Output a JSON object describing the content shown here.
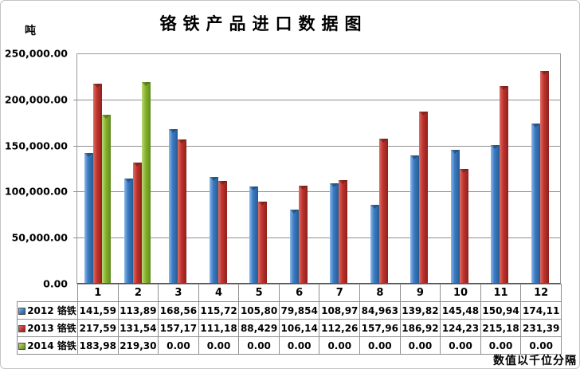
{
  "title": "铬铁产品进口数据图",
  "y_unit": "吨",
  "footer_note": "数值以千位分隔",
  "y_ticks": [
    "250,000.00",
    "200,000.00",
    "150,000.00",
    "100,000.00",
    "50,000.00",
    "0.00"
  ],
  "months": [
    "1",
    "2",
    "3",
    "4",
    "5",
    "6",
    "7",
    "8",
    "9",
    "10",
    "11",
    "12"
  ],
  "table_rows": [
    {
      "label": "2012 铬铁",
      "cells": [
        "141,59",
        "113,89",
        "168,56",
        "115,72",
        "105,80",
        "79,854",
        "108,97",
        "84,963",
        "139,82",
        "145,48",
        "150,94",
        "174,11"
      ]
    },
    {
      "label": "2013 铬铁",
      "cells": [
        "217,59",
        "131,54",
        "157,17",
        "111,18",
        "88,429",
        "106,14",
        "112,26",
        "157,96",
        "186,92",
        "124,23",
        "215,18",
        "231,39"
      ]
    },
    {
      "label": "2014 铬铁",
      "cells": [
        "183,98",
        "219,30",
        "0.00",
        "0.00",
        "0.00",
        "0.00",
        "0.00",
        "0.00",
        "0.00",
        "0.00",
        "0.00",
        "0.00"
      ]
    }
  ],
  "chart_data": {
    "type": "bar",
    "title": "铬铁产品进口数据图",
    "xlabel": "",
    "ylabel": "吨",
    "ylim": [
      0,
      250000
    ],
    "grid": true,
    "legend_position": "table-left",
    "categories": [
      "1",
      "2",
      "3",
      "4",
      "5",
      "6",
      "7",
      "8",
      "9",
      "10",
      "11",
      "12"
    ],
    "series": [
      {
        "name": "2012 铬铁",
        "color": "#3B7BC3",
        "color_light": "#8CB9E8",
        "color_dark": "#265B93",
        "values": [
          141590,
          113890,
          168560,
          115720,
          105800,
          79854,
          108970,
          84963,
          139820,
          145480,
          150940,
          174110
        ]
      },
      {
        "name": "2013 铬铁",
        "color": "#C1342F",
        "color_light": "#DC6F63",
        "color_dark": "#8C211C",
        "values": [
          217590,
          131540,
          157170,
          111180,
          88429,
          106140,
          112260,
          157960,
          186920,
          124230,
          215180,
          231390
        ]
      },
      {
        "name": "2014 铬铁",
        "color": "#87B32F",
        "color_light": "#BCD977",
        "color_dark": "#5E8A1E",
        "values": [
          183980,
          219300,
          0,
          0,
          0,
          0,
          0,
          0,
          0,
          0,
          0,
          0
        ]
      }
    ]
  }
}
